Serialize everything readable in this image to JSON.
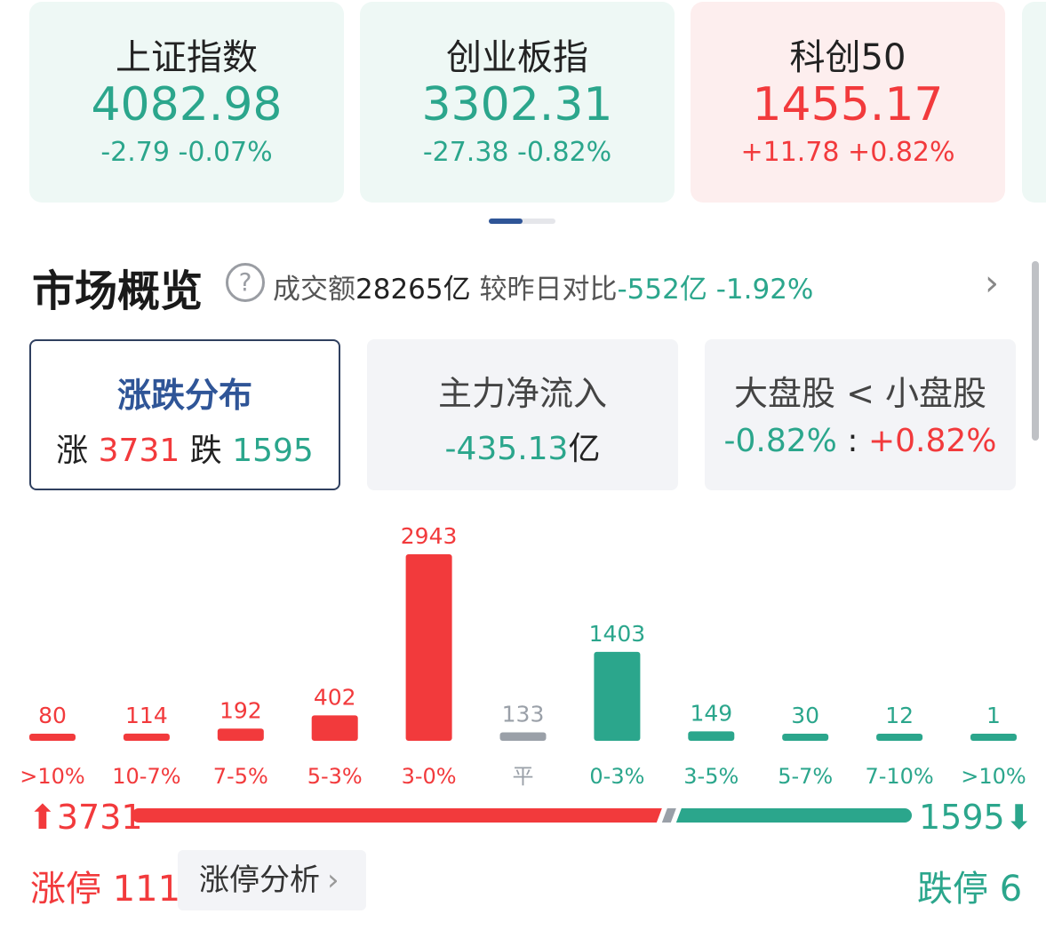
{
  "indices": [
    {
      "name": "上证指数",
      "price": "4082.98",
      "change": "-2.79 -0.07%",
      "trend": "down"
    },
    {
      "name": "创业板指",
      "price": "3302.31",
      "change": "-27.38 -0.82%",
      "trend": "down"
    },
    {
      "name": "科创50",
      "price": "1455.17",
      "change": "+11.78 +0.82%",
      "trend": "up"
    }
  ],
  "overview": {
    "title": "市场概览",
    "help_icon": "question-circle-icon",
    "turnover_label": "成交额",
    "turnover_value": "28265亿",
    "compare_label": "较昨日对比",
    "compare_value": "-552亿",
    "compare_pct": "-1.92%"
  },
  "summary": {
    "distribution": {
      "title": "涨跌分布",
      "up_label": "涨",
      "up_count": "3731",
      "down_label": "跌",
      "down_count": "1595"
    },
    "net_inflow": {
      "title": "主力净流入",
      "value": "-435.13",
      "unit": "亿"
    },
    "cap_compare": {
      "title": "大盘股 < 小盘股",
      "left": "-0.82%",
      "sep": ":",
      "right": "+0.82%"
    }
  },
  "chart_data": {
    "type": "bar",
    "categories": [
      ">10%",
      "10-7%",
      "7-5%",
      "5-3%",
      "3-0%",
      "平",
      "0-3%",
      "3-5%",
      "5-7%",
      "7-10%",
      ">10%"
    ],
    "values": [
      80,
      114,
      192,
      402,
      2943,
      133,
      1403,
      149,
      30,
      12,
      1
    ],
    "colors": [
      "#f23a3c",
      "#f23a3c",
      "#f23a3c",
      "#f23a3c",
      "#f23a3c",
      "#9aa0a8",
      "#2ba68c",
      "#2ba68c",
      "#2ba68c",
      "#2ba68c",
      "#2ba68c"
    ],
    "ylim": [
      0,
      2943
    ]
  },
  "ratio": {
    "up_total": "3731",
    "down_total": "1595",
    "up_arrow": "arrow-up-icon",
    "down_arrow": "arrow-down-icon"
  },
  "limits": {
    "limit_up_label": "涨停",
    "limit_up_count": "111",
    "analysis_label": "涨停分析",
    "limit_down_label": "跌停",
    "limit_down_count": "6"
  },
  "colors": {
    "up": "#f23a3c",
    "down": "#2ba68c",
    "flat": "#9aa0a8",
    "accent": "#2f5597"
  }
}
